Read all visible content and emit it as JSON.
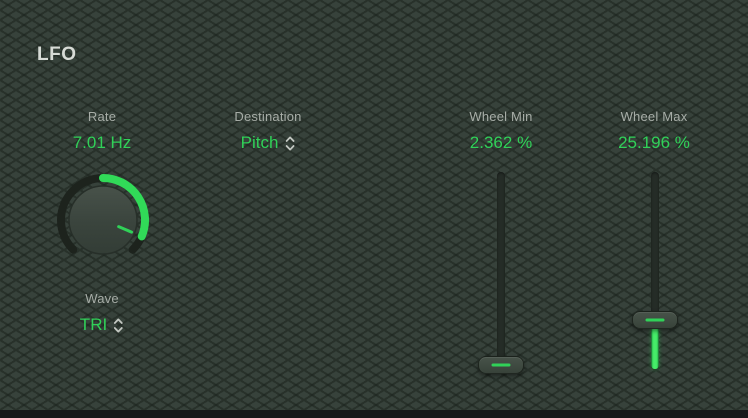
{
  "panel": {
    "title": "LFO"
  },
  "colors": {
    "accent_green": "#30d158",
    "slider_fill_green": "#46ec69",
    "label_gray": "#a7ada7",
    "title_gray": "#d7dbd6",
    "background": "#37423b"
  },
  "controls": {
    "rate": {
      "label": "Rate",
      "value": "7.01 Hz",
      "knob": {
        "sweep_start_deg": -135,
        "sweep_end_deg": 135,
        "value_deg": 113
      }
    },
    "wave": {
      "label": "Wave",
      "value": "TRI"
    },
    "destination": {
      "label": "Destination",
      "value": "Pitch"
    },
    "wheel_min": {
      "label": "Wheel Min",
      "value": "2.362 %",
      "percent": 2.362
    },
    "wheel_max": {
      "label": "Wheel Max",
      "value": "25.196 %",
      "percent": 25.196
    }
  }
}
